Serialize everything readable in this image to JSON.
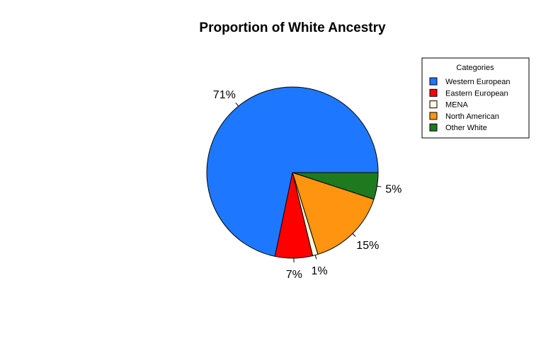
{
  "chart_data": {
    "type": "pie",
    "title": "Proportion of White Ancestry",
    "legend": {
      "title": "Categories",
      "placement": "top-right"
    },
    "slices": [
      {
        "label": "Western European",
        "value": 71,
        "display": "71%",
        "color": "#1E78FF"
      },
      {
        "label": "Eastern European",
        "value": 7,
        "display": "7%",
        "color": "#FF0000"
      },
      {
        "label": "MENA",
        "value": 1,
        "display": "1%",
        "color": "#FFF8DC"
      },
      {
        "label": "North American",
        "value": 15,
        "display": "15%",
        "color": "#FF9410"
      },
      {
        "label": "Other White",
        "value": 5,
        "display": "5%",
        "color": "#1E7A1E"
      }
    ]
  }
}
